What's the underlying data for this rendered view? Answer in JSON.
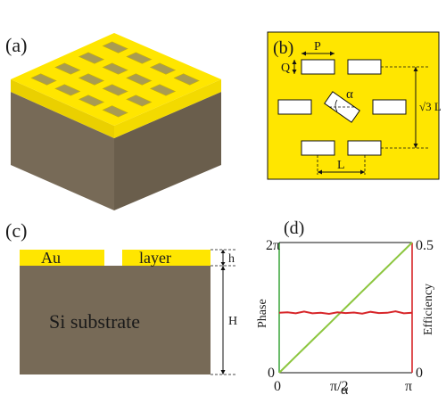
{
  "panels": {
    "a": {
      "label": "(a)"
    },
    "b": {
      "label": "(b)",
      "dim_P": "P",
      "dim_Q": "Q",
      "dim_alpha": "α",
      "dim_L": "L",
      "dim_sqrt3L": "√3 L"
    },
    "c": {
      "label": "(c)",
      "au_text": "Au",
      "layer_text": "layer",
      "substrate_text": "Si substrate",
      "dim_h": "h",
      "dim_H": "H"
    },
    "d": {
      "label": "(d)",
      "y_left_label": "Phase",
      "y_right_label": "Efficiency",
      "x_label": "α",
      "x_ticks": [
        "0",
        "π/2",
        "π"
      ],
      "y_left_ticks": [
        "0",
        "2π"
      ],
      "y_right_ticks": [
        "0",
        "0.5"
      ]
    }
  },
  "colors": {
    "gold": "#ffe600",
    "gold_side": "#ead000",
    "substrate": "#776a57",
    "substrate_dark": "#5c5243",
    "phase_line": "#8cc63f",
    "efficiency_line": "#d7262a",
    "axis_left": "#44aa44",
    "axis_right": "#d7262a"
  },
  "chart_data": {
    "type": "line",
    "x": [
      0,
      0.196,
      0.393,
      0.589,
      0.785,
      0.982,
      1.178,
      1.374,
      1.571,
      1.767,
      1.963,
      2.16,
      2.356,
      2.553,
      2.749,
      2.945,
      3.142
    ],
    "x_ticks": [
      "0",
      "π/2",
      "π"
    ],
    "xlabel": "α",
    "xlim": [
      0,
      3.1416
    ],
    "series": [
      {
        "name": "Phase",
        "axis": "left",
        "values": [
          0,
          0.785,
          1.571,
          2.356,
          3.142,
          3.927,
          4.712,
          5.498,
          6.283,
          7.069,
          7.854,
          8.639,
          9.425,
          10.21,
          10.996,
          11.781,
          12.566
        ],
        "ylim": [
          0,
          12.566
        ],
        "y_ticks": [
          "0",
          "2π"
        ]
      },
      {
        "name": "Efficiency",
        "axis": "right",
        "values": [
          0.23,
          0.232,
          0.228,
          0.235,
          0.228,
          0.23,
          0.226,
          0.232,
          0.229,
          0.231,
          0.227,
          0.234,
          0.229,
          0.23,
          0.236,
          0.228,
          0.23
        ],
        "ylim": [
          0,
          0.5
        ],
        "y_ticks": [
          "0",
          "0.5"
        ]
      }
    ],
    "ylabel": "Phase",
    "ylabel_right": "Efficiency"
  }
}
